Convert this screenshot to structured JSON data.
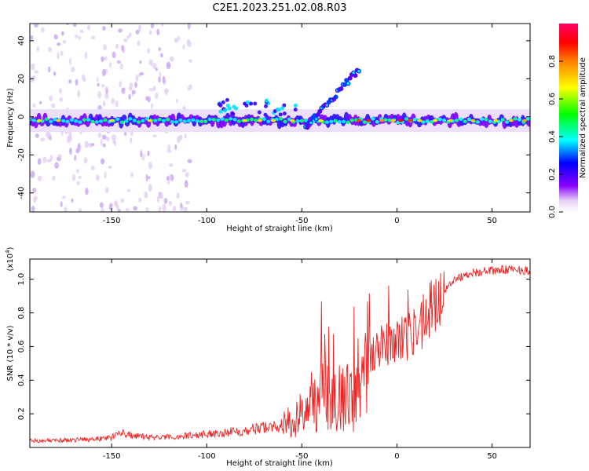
{
  "title": "C2E1.2023.251.02.08.R03",
  "chart_data": [
    {
      "type": "heatmap",
      "xlabel": "Height of straight line (km)",
      "ylabel": "Frequency (Hz)",
      "xlim": [
        -193,
        70
      ],
      "ylim": [
        -50,
        49
      ],
      "xticks": [
        -150,
        -100,
        -50,
        0,
        50
      ],
      "yticks": [
        -40,
        -20,
        0,
        20,
        40
      ],
      "colorbar": {
        "label": "Normalized spectral amplitude",
        "range": [
          0.0,
          1.0
        ],
        "ticks": [
          0.0,
          0.2,
          0.4,
          0.6,
          0.8
        ]
      },
      "main_band": {
        "frequency_hz": -2,
        "half_width_hz": 4
      },
      "diagonal_feature": {
        "from": [
          -48,
          -6
        ],
        "to": [
          -20,
          25
        ]
      },
      "grid": false
    },
    {
      "type": "line",
      "xlabel": "Height of straight line (km)",
      "ylabel": "SNR (10 * v/v)",
      "y_scale_label": "(x10",
      "y_scale_exponent": "4",
      "xlim": [
        -193,
        70
      ],
      "ylim": [
        0.0,
        1.12
      ],
      "xticks": [
        -150,
        -100,
        -50,
        0,
        50
      ],
      "yticks": [
        0.2,
        0.4,
        0.6,
        0.8,
        1.0
      ],
      "color": "#ee2222",
      "series": [
        {
          "x": [
            -193,
            -180,
            -170,
            -160,
            -150,
            -145,
            -140,
            -130,
            -120,
            -110,
            -100,
            -90,
            -80,
            -70,
            -60,
            -55,
            -50,
            -45,
            -40,
            -35,
            -30,
            -25,
            -20,
            -15,
            -10,
            -5,
            0,
            5,
            10,
            15,
            20,
            25,
            30,
            40,
            50,
            60,
            70
          ],
          "y": [
            0.04,
            0.04,
            0.045,
            0.05,
            0.06,
            0.09,
            0.07,
            0.06,
            0.06,
            0.07,
            0.08,
            0.09,
            0.1,
            0.12,
            0.13,
            0.15,
            0.2,
            0.28,
            0.3,
            0.33,
            0.3,
            0.3,
            0.28,
            0.55,
            0.6,
            0.62,
            0.65,
            0.66,
            0.7,
            0.78,
            0.85,
            0.93,
            1.0,
            1.04,
            1.05,
            1.06,
            1.05
          ]
        }
      ],
      "grid": false
    }
  ]
}
